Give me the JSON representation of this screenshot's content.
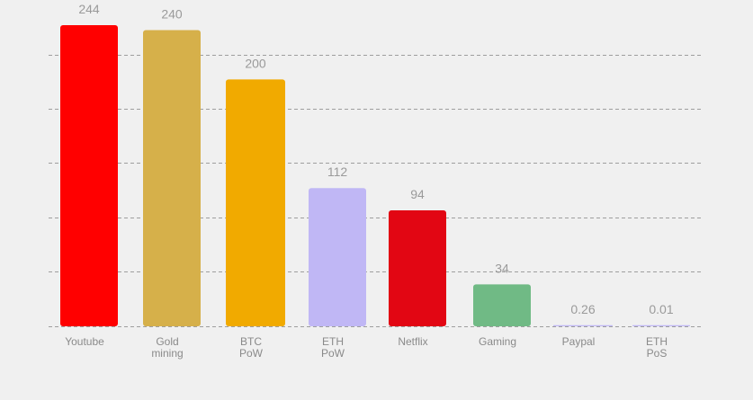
{
  "chart_data": {
    "type": "bar",
    "title": "",
    "xlabel": "",
    "ylabel": "",
    "categories": [
      [
        "Youtube"
      ],
      [
        "Gold",
        "mining"
      ],
      [
        "BTC",
        "PoW"
      ],
      [
        "ETH",
        "PoW"
      ],
      [
        "Netflix"
      ],
      [
        "Gaming"
      ],
      [
        "Paypal"
      ],
      [
        "ETH",
        "PoS"
      ]
    ],
    "values": [
      244,
      240,
      200,
      112,
      94,
      34,
      0.26,
      0.01
    ],
    "value_labels": [
      "244",
      "240",
      "200",
      "112",
      "94",
      "34",
      "0.26",
      "0.01"
    ],
    "colors": [
      "#ff0000",
      "#d6b04a",
      "#f1aa00",
      "#c0b7f5",
      "#e20613",
      "#70ba85",
      "#c0b7f5",
      "#c0b7f5"
    ],
    "ylim": [
      0,
      244
    ],
    "y_gridlines_at": [
      0,
      44.6,
      88.4,
      132.2,
      176,
      219.8
    ],
    "grid": true,
    "grid_style": "dashed",
    "legend": "none",
    "y_tick_labels": "none"
  }
}
